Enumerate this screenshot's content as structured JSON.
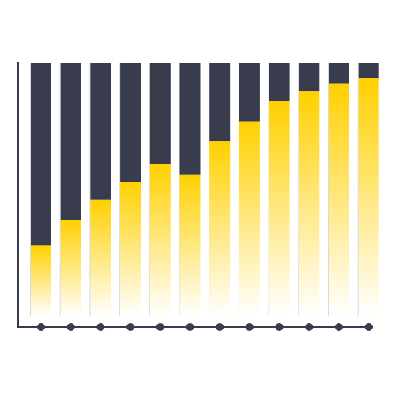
{
  "chart_data": {
    "type": "bar",
    "stacked": true,
    "normalized": true,
    "categories": [
      "",
      "",
      "",
      "",
      "",
      "",
      "",
      "",
      "",
      "",
      "",
      ""
    ],
    "series": [
      {
        "color": "#FFD000",
        "values": [
          28,
          38,
          46,
          53,
          60,
          56,
          69,
          77,
          85,
          89,
          92,
          94
        ]
      },
      {
        "color": "#393C4D",
        "values": [
          72,
          62,
          54,
          47,
          40,
          44,
          31,
          23,
          15,
          11,
          8,
          6
        ]
      }
    ],
    "ylim": [
      0,
      100
    ],
    "grid": false,
    "legend": "none",
    "axis_color": "#393C4D",
    "marker_color": "#393C4D"
  }
}
